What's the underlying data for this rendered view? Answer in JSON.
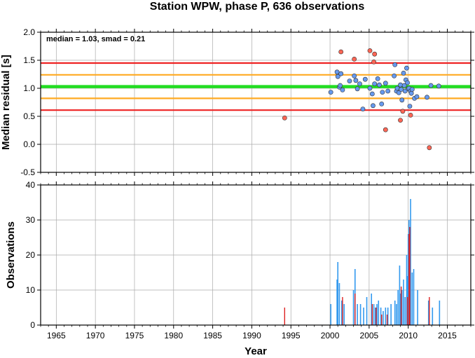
{
  "title": "Station WPW, phase P, 636 observations",
  "top_panel": {
    "ylabel": "Median residual [s]",
    "annotation": "median = 1.03, smad = 0.21"
  },
  "bottom_panel": {
    "ylabel": "Observations",
    "xlabel": "Year"
  },
  "colors": {
    "median_line": "#22dd22",
    "one_smad_line": "#ffaa22",
    "two_smad_line": "#ee2222",
    "blue_point": "#6699ee",
    "red_point": "#ff6655",
    "blue_bar": "#3399ee",
    "red_bar": "#dd2222",
    "grid": "#aaaaaa"
  },
  "chart_data": [
    {
      "type": "scatter",
      "xlim": [
        1963,
        2018
      ],
      "ylim": [
        -0.5,
        2.0
      ],
      "xticks": [
        1965,
        1970,
        1975,
        1980,
        1985,
        1990,
        1995,
        2000,
        2005,
        2010,
        2015
      ],
      "yticks": [
        "-0.5",
        "0.0",
        "0.5",
        "1.0",
        "1.5",
        "2.0"
      ],
      "grid": true,
      "hlines": [
        {
          "y": 1.03,
          "role": "median"
        },
        {
          "y": 1.24,
          "role": "+1 smad"
        },
        {
          "y": 0.82,
          "role": "-1 smad"
        },
        {
          "y": 1.45,
          "role": "+2 smad"
        },
        {
          "y": 0.61,
          "role": "-2 smad"
        }
      ],
      "series": [
        {
          "role": "within 2 smad",
          "points": [
            [
              2000.1,
              0.93
            ],
            [
              2000.9,
              1.29
            ],
            [
              2001.0,
              1.21
            ],
            [
              2001.2,
              1.02
            ],
            [
              2001.4,
              1.26
            ],
            [
              2001.6,
              0.97
            ],
            [
              2002.5,
              1.13
            ],
            [
              2003.1,
              1.22
            ],
            [
              2003.3,
              1.14
            ],
            [
              2003.5,
              0.99
            ],
            [
              2003.8,
              1.08
            ],
            [
              2004.2,
              0.63
            ],
            [
              2004.5,
              1.16
            ],
            [
              2005.1,
              1.0
            ],
            [
              2005.4,
              0.9
            ],
            [
              2005.5,
              0.69
            ],
            [
              2005.7,
              1.08
            ],
            [
              2006.1,
              1.17
            ],
            [
              2006.3,
              1.06
            ],
            [
              2006.6,
              0.72
            ],
            [
              2006.7,
              0.93
            ],
            [
              2007.1,
              1.09
            ],
            [
              2007.4,
              0.95
            ],
            [
              2008.2,
              1.22
            ],
            [
              2008.5,
              0.95
            ],
            [
              2008.6,
              1.0
            ],
            [
              2008.8,
              0.92
            ],
            [
              2009.0,
              1.06
            ],
            [
              2009.1,
              0.98
            ],
            [
              2009.2,
              0.79
            ],
            [
              2009.4,
              1.27
            ],
            [
              2009.5,
              1.05
            ],
            [
              2009.6,
              0.95
            ],
            [
              2009.7,
              1.15
            ],
            [
              2009.8,
              1.36
            ],
            [
              2009.9,
              1.1
            ],
            [
              2010.0,
              0.99
            ],
            [
              2010.1,
              1.0
            ],
            [
              2010.2,
              0.68
            ],
            [
              2010.3,
              0.95
            ],
            [
              2010.4,
              0.91
            ],
            [
              2010.5,
              0.98
            ],
            [
              2010.8,
              0.82
            ],
            [
              2011.1,
              0.85
            ],
            [
              2012.4,
              0.84
            ],
            [
              2012.9,
              1.05
            ],
            [
              2013.9,
              1.04
            ],
            [
              2008.3,
              1.42
            ],
            [
              2001.3,
              1.05
            ]
          ]
        },
        {
          "role": "outside 2 smad",
          "points": [
            [
              1994.2,
              0.47
            ],
            [
              2001.4,
              1.65
            ],
            [
              2003.1,
              1.52
            ],
            [
              2005.1,
              1.67
            ],
            [
              2005.7,
              1.61
            ],
            [
              2005.6,
              1.47
            ],
            [
              2007.1,
              0.26
            ],
            [
              2009.0,
              0.43
            ],
            [
              2009.3,
              0.59
            ],
            [
              2010.3,
              0.52
            ],
            [
              2012.7,
              -0.06
            ]
          ]
        }
      ]
    },
    {
      "type": "bar",
      "xlim": [
        1963,
        2018
      ],
      "ylim": [
        0,
        40
      ],
      "xticks": [
        1965,
        1970,
        1975,
        1980,
        1985,
        1990,
        1995,
        2000,
        2005,
        2010,
        2015
      ],
      "yticks": [
        "0",
        "10",
        "20",
        "30",
        "40"
      ],
      "xlabel": "Year",
      "ylabel": "Observations",
      "grid": true,
      "series": [
        {
          "role": "total observations",
          "bars": [
            [
              2000.1,
              6
            ],
            [
              2000.9,
              13
            ],
            [
              2001.0,
              18
            ],
            [
              2001.2,
              12
            ],
            [
              2001.5,
              7
            ],
            [
              2001.8,
              6
            ],
            [
              2003.0,
              10
            ],
            [
              2003.2,
              16
            ],
            [
              2003.5,
              6
            ],
            [
              2003.9,
              6
            ],
            [
              2004.3,
              5
            ],
            [
              2004.7,
              8
            ],
            [
              2005.3,
              9
            ],
            [
              2005.6,
              6
            ],
            [
              2005.8,
              5
            ],
            [
              2006.0,
              6
            ],
            [
              2006.2,
              7
            ],
            [
              2006.5,
              5
            ],
            [
              2006.8,
              4
            ],
            [
              2007.1,
              5
            ],
            [
              2007.4,
              5
            ],
            [
              2007.8,
              6
            ],
            [
              2008.3,
              7
            ],
            [
              2008.5,
              6
            ],
            [
              2008.7,
              10
            ],
            [
              2008.9,
              17
            ],
            [
              2009.0,
              9
            ],
            [
              2009.2,
              10
            ],
            [
              2009.4,
              13
            ],
            [
              2009.6,
              8
            ],
            [
              2009.8,
              20
            ],
            [
              2009.9,
              14
            ],
            [
              2010.0,
              26
            ],
            [
              2010.1,
              30
            ],
            [
              2010.2,
              25
            ],
            [
              2010.3,
              36
            ],
            [
              2010.5,
              15
            ],
            [
              2010.7,
              16
            ],
            [
              2011.2,
              10
            ],
            [
              2012.6,
              7
            ],
            [
              2013.1,
              5
            ],
            [
              2014.0,
              7
            ]
          ]
        },
        {
          "role": "outliers",
          "bars": [
            [
              1994.2,
              5
            ],
            [
              2001.6,
              8
            ],
            [
              2003.2,
              9
            ],
            [
              2005.4,
              6
            ],
            [
              2005.9,
              5
            ],
            [
              2006.6,
              3
            ],
            [
              2007.3,
              3
            ],
            [
              2009.1,
              11
            ],
            [
              2009.9,
              8
            ],
            [
              2010.1,
              26
            ],
            [
              2010.2,
              28
            ],
            [
              2012.7,
              8
            ]
          ]
        }
      ]
    }
  ]
}
